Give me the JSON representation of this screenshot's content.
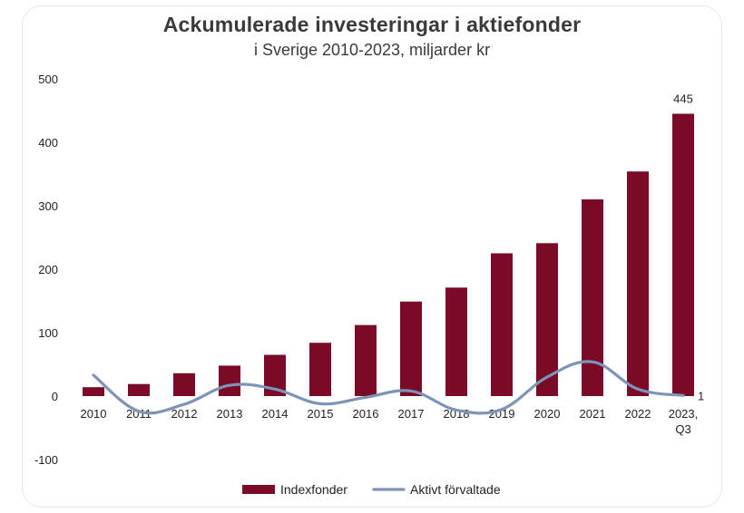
{
  "chart_data": {
    "type": "bar",
    "title": "Ackumulerade investeringar i aktiefonder",
    "subtitle": "i Sverige 2010-2023, miljarder kr",
    "categories": [
      "2010",
      "2011",
      "2012",
      "2013",
      "2014",
      "2015",
      "2016",
      "2017",
      "2018",
      "2019",
      "2020",
      "2021",
      "2022",
      "2023, Q3"
    ],
    "series": [
      {
        "name": "Indexfonder",
        "type": "bar",
        "color": "#7a0a25",
        "values": [
          14,
          19,
          36,
          48,
          65,
          84,
          112,
          149,
          171,
          225,
          241,
          310,
          354,
          445
        ]
      },
      {
        "name": "Aktivt förvaltade",
        "type": "line",
        "color": "#7d93b8",
        "values": [
          33,
          -24,
          -13,
          17,
          11,
          -12,
          -2,
          8,
          -22,
          -21,
          30,
          54,
          11,
          1
        ]
      }
    ],
    "data_labels": [
      {
        "series": "Indexfonder",
        "category": "2023, Q3",
        "text": "445"
      },
      {
        "series": "Aktivt förvaltade",
        "category": "2023, Q3",
        "text": "1"
      }
    ],
    "yticks": [
      "500",
      "400",
      "300",
      "200",
      "100",
      "0",
      "-100"
    ],
    "ylim": [
      -100,
      500
    ],
    "grid": false,
    "legend_position": "bottom"
  }
}
